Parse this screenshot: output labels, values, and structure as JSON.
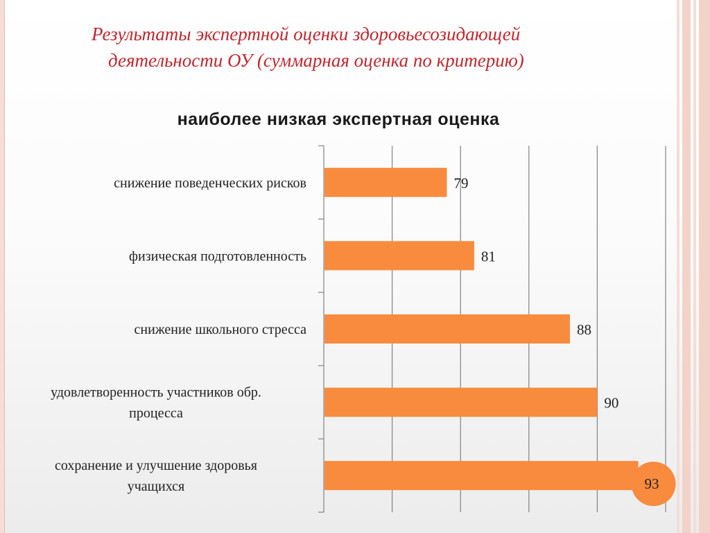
{
  "slide": {
    "title_line1": "Результаты экспертной оценки здоровьесозидающей",
    "title_line2": "деятельности ОУ (суммарная оценка по критерию)"
  },
  "colors": {
    "title_red": "#c0262d",
    "bar": "#f98b3e",
    "highlight_circle": "#f98b3e"
  },
  "chart_data": {
    "type": "bar",
    "orientation": "horizontal",
    "title": "наиболее низкая экспертная оценка",
    "categories": [
      [
        "снижение поведенческих рисков"
      ],
      [
        "физическая подготовленность"
      ],
      [
        "снижение школьного стресса"
      ],
      [
        "удовлетворенность участников обр.",
        "процесса"
      ],
      [
        "сохранение и улучшение здоровья",
        "учащихся"
      ]
    ],
    "values": [
      79,
      81,
      88,
      90,
      93
    ],
    "xlim": [
      70,
      95
    ],
    "grid": true,
    "legend": "none",
    "highlighted_value_index": 4
  }
}
